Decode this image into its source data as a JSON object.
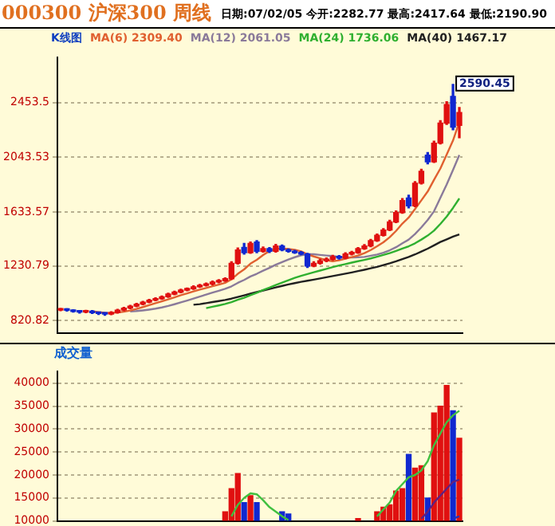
{
  "chart_data": [
    {
      "type": "candlestick",
      "title": "000300 沪深300 周线",
      "subtitle": "日期:07/02/05 今开:2282.77 最高:2417.64 最低:2190.90",
      "legend_title": "K线图",
      "legend": "top",
      "grid": "y",
      "tick_labels": "y",
      "marker": "none",
      "categories": [
        null,
        null,
        null,
        null,
        null,
        null,
        null,
        null,
        null,
        null,
        null,
        null,
        null,
        null,
        null,
        null,
        null,
        null,
        null,
        null,
        null,
        null,
        null,
        null,
        null,
        null,
        null,
        null,
        null,
        null,
        null,
        null,
        null,
        null,
        null,
        null,
        null,
        null,
        null,
        null,
        null,
        null,
        null,
        null,
        null,
        null,
        null,
        null,
        null,
        null,
        null,
        null,
        null,
        null,
        null,
        null,
        null,
        null,
        null,
        null,
        null,
        null,
        null,
        null
      ],
      "ohlc": [
        [
          900,
          912,
          895,
          905
        ],
        [
          905,
          910,
          892,
          898
        ],
        [
          898,
          903,
          885,
          890
        ],
        [
          890,
          895,
          878,
          885
        ],
        [
          885,
          898,
          880,
          892
        ],
        [
          892,
          896,
          875,
          880
        ],
        [
          880,
          885,
          868,
          875
        ],
        [
          875,
          880,
          862,
          870
        ],
        [
          870,
          888,
          866,
          882
        ],
        [
          882,
          906,
          878,
          900
        ],
        [
          900,
          920,
          896,
          915
        ],
        [
          915,
          936,
          910,
          930
        ],
        [
          930,
          950,
          925,
          945
        ],
        [
          945,
          966,
          940,
          960
        ],
        [
          960,
          980,
          955,
          975
        ],
        [
          975,
          992,
          970,
          985
        ],
        [
          985,
          1006,
          980,
          1000
        ],
        [
          1000,
          1026,
          995,
          1020
        ],
        [
          1020,
          1042,
          1015,
          1035
        ],
        [
          1035,
          1056,
          1030,
          1050
        ],
        [
          1050,
          1066,
          1045,
          1060
        ],
        [
          1060,
          1082,
          1055,
          1075
        ],
        [
          1075,
          1092,
          1070,
          1085
        ],
        [
          1085,
          1102,
          1080,
          1095
        ],
        [
          1095,
          1118,
          1090,
          1110
        ],
        [
          1110,
          1128,
          1105,
          1120
        ],
        [
          1120,
          1142,
          1115,
          1135
        ],
        [
          1135,
          1262,
          1130,
          1250
        ],
        [
          1250,
          1365,
          1245,
          1350
        ],
        [
          1370,
          1400,
          1320,
          1330
        ],
        [
          1330,
          1410,
          1325,
          1400
        ],
        [
          1410,
          1420,
          1330,
          1340
        ],
        [
          1340,
          1372,
          1335,
          1360
        ],
        [
          1360,
          1368,
          1332,
          1340
        ],
        [
          1340,
          1392,
          1335,
          1380
        ],
        [
          1380,
          1388,
          1345,
          1350
        ],
        [
          1350,
          1358,
          1335,
          1340
        ],
        [
          1340,
          1348,
          1325,
          1330
        ],
        [
          1330,
          1338,
          1315,
          1320
        ],
        [
          1320,
          1325,
          1220,
          1230
        ],
        [
          1230,
          1262,
          1225,
          1250
        ],
        [
          1250,
          1280,
          1245,
          1270
        ],
        [
          1270,
          1290,
          1262,
          1280
        ],
        [
          1280,
          1310,
          1275,
          1300
        ],
        [
          1300,
          1308,
          1282,
          1290
        ],
        [
          1290,
          1330,
          1285,
          1320
        ],
        [
          1320,
          1340,
          1314,
          1330
        ],
        [
          1330,
          1368,
          1325,
          1360
        ],
        [
          1360,
          1390,
          1355,
          1380
        ],
        [
          1380,
          1430,
          1375,
          1420
        ],
        [
          1420,
          1470,
          1415,
          1460
        ],
        [
          1460,
          1510,
          1455,
          1500
        ],
        [
          1500,
          1572,
          1495,
          1560
        ],
        [
          1560,
          1642,
          1555,
          1630
        ],
        [
          1630,
          1735,
          1625,
          1720
        ],
        [
          1740,
          1760,
          1665,
          1680
        ],
        [
          1680,
          1862,
          1675,
          1850
        ],
        [
          1850,
          1955,
          1845,
          1940
        ],
        [
          2060,
          2080,
          1995,
          2010
        ],
        [
          2010,
          2165,
          2005,
          2150
        ],
        [
          2150,
          2318,
          2145,
          2300
        ],
        [
          2300,
          2460,
          2290,
          2440
        ],
        [
          2500,
          2590.45,
          2250,
          2270
        ],
        [
          2282.77,
          2417.64,
          2190.9,
          2380
        ]
      ],
      "colors": [
        "#e01010",
        "#1028d0",
        "#1028d0",
        "#1028d0",
        "#e01010",
        "#1028d0",
        "#1028d0",
        "#1028d0",
        "#e01010",
        "#e01010",
        "#e01010",
        "#e01010",
        "#e01010",
        "#e01010",
        "#e01010",
        "#e01010",
        "#e01010",
        "#e01010",
        "#e01010",
        "#e01010",
        "#e01010",
        "#e01010",
        "#e01010",
        "#e01010",
        "#e01010",
        "#e01010",
        "#e01010",
        "#e01010",
        "#e01010",
        "#1028d0",
        "#e01010",
        "#1028d0",
        "#e01010",
        "#1028d0",
        "#e01010",
        "#1028d0",
        "#1028d0",
        "#1028d0",
        "#1028d0",
        "#1028d0",
        "#e01010",
        "#e01010",
        "#e01010",
        "#e01010",
        "#1028d0",
        "#e01010",
        "#e01010",
        "#e01010",
        "#e01010",
        "#e01010",
        "#e01010",
        "#e01010",
        "#e01010",
        "#e01010",
        "#e01010",
        "#1028d0",
        "#e01010",
        "#e01010",
        "#1028d0",
        "#e01010",
        "#e01010",
        "#e01010",
        "#1028d0",
        "#e01010"
      ],
      "series": [
        {
          "type": "line",
          "name": "MA(6) 2309.40",
          "color": "#e06030",
          "values": [
            null,
            null,
            null,
            null,
            null,
            890,
            885,
            880,
            879,
            882,
            888,
            897,
            909,
            923,
            937,
            952,
            966,
            981,
            996,
            1012,
            1025,
            1040,
            1054,
            1066,
            1079,
            1091,
            1104,
            1131,
            1172,
            1205,
            1248,
            1277,
            1312,
            1343,
            1358,
            1362,
            1357,
            1352,
            1340,
            1318,
            1302,
            1288,
            1273,
            1266,
            1273,
            1285,
            1297,
            1309,
            1327,
            1350,
            1378,
            1408,
            1446,
            1493,
            1548,
            1593,
            1657,
            1722,
            1788,
            1876,
            1960,
            2065,
            2170,
            2309.4
          ]
        },
        {
          "type": "line",
          "name": "MA(12) 2061.05",
          "color": "#8a7a9a",
          "values": [
            null,
            null,
            null,
            null,
            null,
            null,
            null,
            null,
            null,
            null,
            null,
            890,
            893,
            898,
            904,
            911,
            920,
            931,
            944,
            958,
            972,
            987,
            1001,
            1016,
            1031,
            1045,
            1059,
            1078,
            1104,
            1126,
            1152,
            1172,
            1195,
            1216,
            1240,
            1260,
            1279,
            1296,
            1311,
            1318,
            1318,
            1313,
            1309,
            1305,
            1298,
            1296,
            1294,
            1295,
            1298,
            1307,
            1316,
            1330,
            1348,
            1371,
            1400,
            1428,
            1470,
            1520,
            1575,
            1640,
            1740,
            1840,
            1950,
            2061.05
          ]
        },
        {
          "type": "line",
          "name": "MA(24) 1736.06",
          "color": "#30b030",
          "values": [
            null,
            null,
            null,
            null,
            null,
            null,
            null,
            null,
            null,
            null,
            null,
            null,
            null,
            null,
            null,
            null,
            null,
            null,
            null,
            null,
            null,
            null,
            null,
            915,
            925,
            935,
            946,
            960,
            977,
            993,
            1012,
            1030,
            1050,
            1068,
            1088,
            1106,
            1124,
            1141,
            1157,
            1170,
            1183,
            1196,
            1209,
            1222,
            1234,
            1245,
            1256,
            1266,
            1276,
            1287,
            1300,
            1313,
            1327,
            1343,
            1361,
            1378,
            1400,
            1428,
            1458,
            1495,
            1545,
            1600,
            1665,
            1736.06
          ]
        },
        {
          "type": "line",
          "name": "MA(40) 1467.17",
          "color": "#202020",
          "values": [
            null,
            null,
            null,
            null,
            null,
            null,
            null,
            null,
            null,
            null,
            null,
            null,
            null,
            null,
            null,
            null,
            null,
            null,
            null,
            null,
            null,
            940,
            945,
            952,
            960,
            968,
            976,
            986,
            998,
            1010,
            1023,
            1035,
            1047,
            1058,
            1070,
            1081,
            1092,
            1102,
            1112,
            1120,
            1128,
            1137,
            1146,
            1155,
            1164,
            1173,
            1182,
            1192,
            1202,
            1213,
            1224,
            1237,
            1250,
            1265,
            1282,
            1298,
            1317,
            1338,
            1360,
            1385,
            1410,
            1430,
            1450,
            1467.17
          ]
        }
      ],
      "ylim": [
        730,
        2790
      ],
      "yticks": [
        820.82,
        1230.79,
        1633.57,
        2043.53,
        2453.5
      ],
      "annotations": [
        "2590.45"
      ]
    },
    {
      "type": "bar",
      "title": "成交量",
      "grid": "y",
      "tick_labels": "y",
      "marker": "none",
      "categories": [
        null,
        null,
        null,
        null,
        null,
        null,
        null,
        null,
        null,
        null,
        null,
        null,
        null,
        null,
        null,
        null,
        null,
        null,
        null,
        null,
        null,
        null,
        null,
        null,
        null,
        null,
        null,
        null,
        null,
        null,
        null,
        null,
        null,
        null,
        null,
        null,
        null,
        null,
        null,
        null,
        null,
        null,
        null,
        null,
        null,
        null,
        null,
        null,
        null,
        null,
        null,
        null,
        null,
        null,
        null,
        null,
        null,
        null,
        null,
        null,
        null,
        null,
        null,
        null
      ],
      "series": [
        {
          "type": "bar",
          "values": [
            null,
            null,
            null,
            null,
            null,
            null,
            null,
            null,
            null,
            null,
            null,
            null,
            null,
            null,
            null,
            null,
            null,
            null,
            null,
            null,
            null,
            null,
            null,
            null,
            null,
            null,
            12000,
            17000,
            20300,
            14000,
            15500,
            14000,
            null,
            null,
            null,
            12000,
            11500,
            null,
            null,
            null,
            null,
            null,
            null,
            null,
            null,
            null,
            null,
            10500,
            null,
            null,
            12000,
            13000,
            13500,
            16500,
            17000,
            24500,
            21500,
            22000,
            15000,
            33500,
            35000,
            39500,
            34000,
            28000
          ],
          "colors": [
            "#e01010",
            "#1028d0",
            "#1028d0",
            "#1028d0",
            "#e01010",
            "#1028d0",
            "#1028d0",
            "#1028d0",
            "#e01010",
            "#e01010",
            "#e01010",
            "#e01010",
            "#e01010",
            "#e01010",
            "#e01010",
            "#e01010",
            "#e01010",
            "#e01010",
            "#e01010",
            "#e01010",
            "#e01010",
            "#e01010",
            "#e01010",
            "#e01010",
            "#e01010",
            "#e01010",
            "#e01010",
            "#e01010",
            "#e01010",
            "#1028d0",
            "#e01010",
            "#1028d0",
            "#e01010",
            "#1028d0",
            "#e01010",
            "#1028d0",
            "#1028d0",
            "#1028d0",
            "#1028d0",
            "#1028d0",
            "#e01010",
            "#e01010",
            "#e01010",
            "#e01010",
            "#1028d0",
            "#e01010",
            "#e01010",
            "#e01010",
            "#e01010",
            "#e01010",
            "#e01010",
            "#e01010",
            "#e01010",
            "#e01010",
            "#e01010",
            "#1028d0",
            "#e01010",
            "#e01010",
            "#1028d0",
            "#e01010",
            "#e01010",
            "#e01010",
            "#1028d0",
            "#e01010"
          ]
        },
        {
          "type": "line",
          "color": "#40c040",
          "values": [
            null,
            null,
            null,
            null,
            null,
            null,
            null,
            null,
            null,
            null,
            null,
            null,
            null,
            null,
            null,
            null,
            null,
            null,
            null,
            null,
            null,
            null,
            null,
            null,
            null,
            null,
            null,
            11000,
            13500,
            15000,
            16000,
            15800,
            14500,
            13000,
            12000,
            11000,
            10200,
            null,
            null,
            null,
            null,
            null,
            null,
            null,
            null,
            null,
            null,
            null,
            null,
            null,
            11000,
            12500,
            14000,
            16500,
            18000,
            19500,
            20000,
            21000,
            23000,
            26500,
            29000,
            31500,
            33000,
            34000
          ]
        },
        {
          "type": "line",
          "color": "#602080",
          "values": [
            null,
            null,
            null,
            null,
            null,
            null,
            null,
            null,
            null,
            null,
            null,
            null,
            null,
            null,
            null,
            null,
            null,
            null,
            null,
            null,
            null,
            null,
            null,
            null,
            null,
            null,
            null,
            null,
            null,
            null,
            null,
            null,
            null,
            null,
            null,
            null,
            null,
            null,
            null,
            null,
            null,
            null,
            null,
            null,
            null,
            null,
            null,
            null,
            null,
            null,
            null,
            null,
            null,
            null,
            null,
            null,
            null,
            10500,
            12000,
            14000,
            15500,
            17000,
            18500,
            19000
          ]
        },
        {
          "type": "line",
          "color": "#2030c0",
          "values": [
            null,
            null,
            null,
            null,
            null,
            null,
            null,
            null,
            null,
            null,
            null,
            null,
            null,
            null,
            null,
            null,
            null,
            null,
            null,
            null,
            null,
            null,
            null,
            null,
            null,
            null,
            null,
            null,
            null,
            null,
            null,
            null,
            null,
            null,
            null,
            null,
            null,
            null,
            null,
            null,
            null,
            null,
            null,
            null,
            null,
            null,
            null,
            null,
            null,
            null,
            null,
            null,
            null,
            null,
            null,
            null,
            null,
            null,
            null,
            null,
            null,
            null,
            10500,
            11000
          ]
        }
      ],
      "ylim": [
        10000,
        42500
      ],
      "yticks": [
        10000,
        15000,
        20000,
        25000,
        30000,
        35000,
        40000
      ]
    }
  ]
}
